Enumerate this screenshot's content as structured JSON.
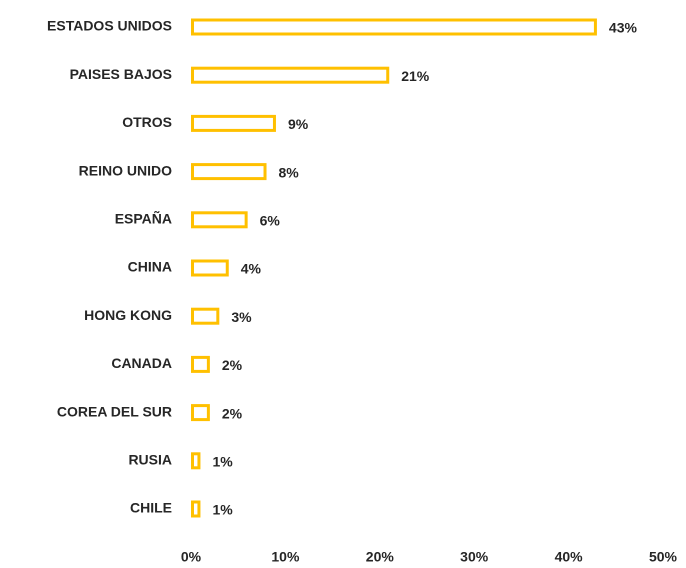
{
  "chart_data": {
    "type": "bar",
    "orientation": "horizontal",
    "categories": [
      "ESTADOS UNIDOS",
      "PAISES BAJOS",
      "OTROS",
      "REINO UNIDO",
      "ESPAÑA",
      "CHINA",
      "HONG KONG",
      "CANADA",
      "COREA DEL SUR",
      "RUSIA",
      "CHILE"
    ],
    "values": [
      43,
      21,
      9,
      8,
      6,
      4,
      3,
      2,
      2,
      1,
      1
    ],
    "value_labels": [
      "43%",
      "21%",
      "9%",
      "8%",
      "6%",
      "4%",
      "3%",
      "2%",
      "2%",
      "1%",
      "1%"
    ],
    "color": "#FFC000",
    "xlim": [
      0,
      50
    ],
    "xticks": [
      {
        "value": 0,
        "label": "0%"
      },
      {
        "value": 10,
        "label": "10%"
      },
      {
        "value": 20,
        "label": "20%"
      },
      {
        "value": 30,
        "label": "30%"
      },
      {
        "value": 40,
        "label": "40%"
      },
      {
        "value": 50,
        "label": "50%"
      }
    ],
    "grid": false
  }
}
